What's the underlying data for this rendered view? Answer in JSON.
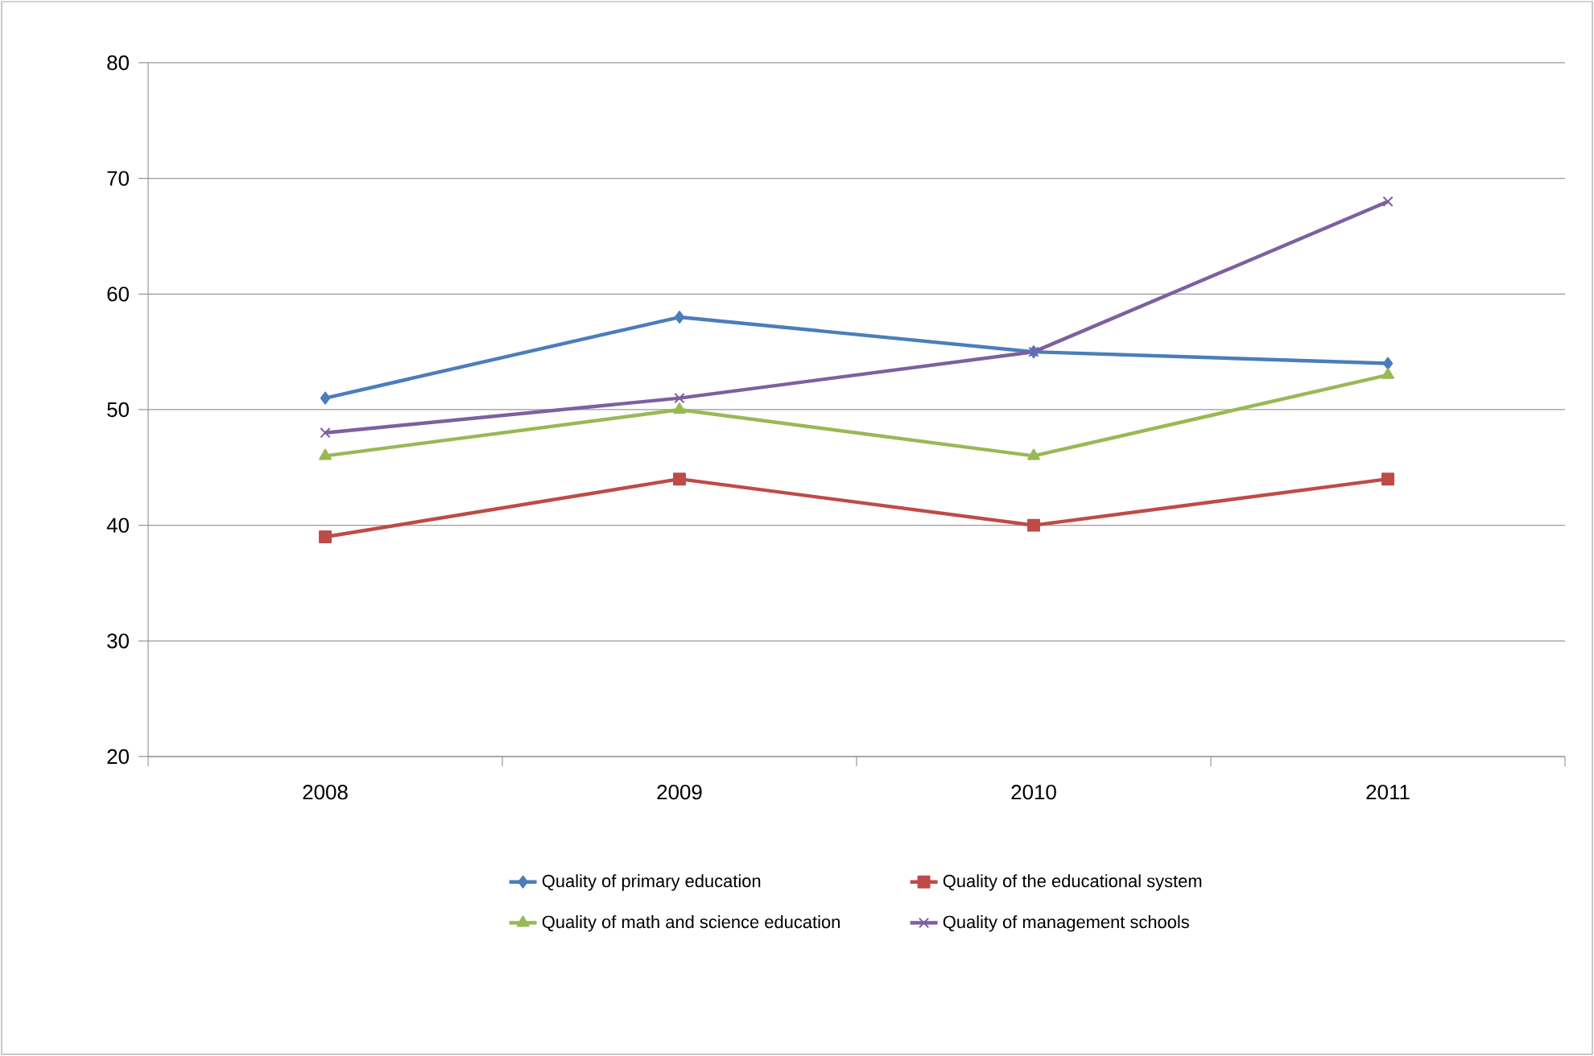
{
  "chart_data": {
    "type": "line",
    "categories": [
      "2008",
      "2009",
      "2010",
      "2011"
    ],
    "series": [
      {
        "name": "Quality of primary education",
        "color": "#4a7ebb",
        "marker": "diamond",
        "values": [
          51,
          58,
          55,
          54
        ]
      },
      {
        "name": "Quality of the educational system",
        "color": "#be4b48",
        "marker": "square",
        "values": [
          39,
          44,
          40,
          44
        ]
      },
      {
        "name": "Quality of math and science education",
        "color": "#98b954",
        "marker": "triangle",
        "values": [
          46,
          50,
          46,
          53
        ]
      },
      {
        "name": "Quality of management schools",
        "color": "#7d60a0",
        "marker": "cross",
        "values": [
          48,
          51,
          55,
          68
        ]
      }
    ],
    "ylim": [
      20,
      80
    ],
    "yticks": [
      20,
      30,
      40,
      50,
      60,
      70,
      80
    ],
    "grid": "y",
    "legend": "bottom",
    "line_style": "solid"
  }
}
